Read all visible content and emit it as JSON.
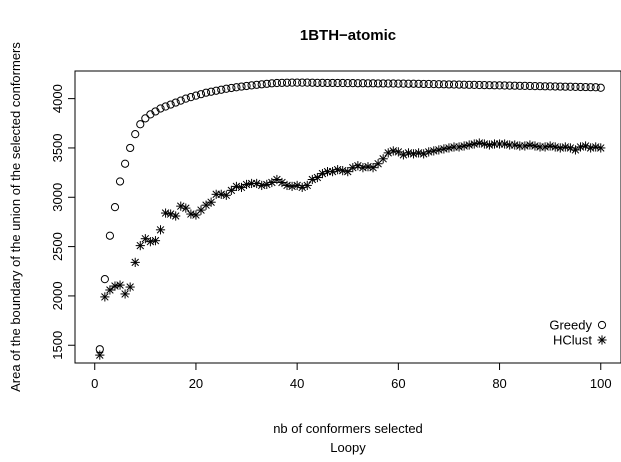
{
  "chart_data": {
    "type": "scatter",
    "title": "1BTH−atomic",
    "xlabel": "nb of conformers selected",
    "xlabel2": "Loopy",
    "ylabel": "Area of the boundary of the union of the selected conformers",
    "xlim": [
      -3.9,
      104
    ],
    "ylim": [
      1320,
      4280
    ],
    "xticks": [
      {
        "value": 0,
        "label": "0"
      },
      {
        "value": 20,
        "label": "20"
      },
      {
        "value": 40,
        "label": "40"
      },
      {
        "value": 60,
        "label": "60"
      },
      {
        "value": 80,
        "label": "80"
      },
      {
        "value": 100,
        "label": "100"
      }
    ],
    "yticks": [
      {
        "value": 1500,
        "label": "1500"
      },
      {
        "value": 2000,
        "label": "2000"
      },
      {
        "value": 2500,
        "label": "2500"
      },
      {
        "value": 3000,
        "label": "3000"
      },
      {
        "value": 3500,
        "label": "3500"
      },
      {
        "value": 4000,
        "label": "4000"
      }
    ],
    "grid": false,
    "legend_position": "bottom-right",
    "series": [
      {
        "name": "Greedy",
        "marker": "circle",
        "x": [
          1,
          2,
          3,
          4,
          5,
          6,
          7,
          8,
          9,
          10,
          11,
          12,
          13,
          14,
          15,
          16,
          17,
          18,
          19,
          20,
          21,
          22,
          23,
          24,
          25,
          26,
          27,
          28,
          29,
          30,
          31,
          32,
          33,
          34,
          35,
          36,
          37,
          38,
          39,
          40,
          41,
          42,
          43,
          44,
          45,
          46,
          47,
          48,
          49,
          50,
          51,
          52,
          53,
          54,
          55,
          56,
          57,
          58,
          59,
          60,
          61,
          62,
          63,
          64,
          65,
          66,
          67,
          68,
          69,
          70,
          71,
          72,
          73,
          74,
          75,
          76,
          77,
          78,
          79,
          80,
          81,
          82,
          83,
          84,
          85,
          86,
          87,
          88,
          89,
          90,
          91,
          92,
          93,
          94,
          95,
          96,
          97,
          98,
          99,
          100
        ],
        "y": [
          1460,
          2170,
          2610,
          2900,
          3160,
          3340,
          3500,
          3640,
          3740,
          3800,
          3840,
          3870,
          3900,
          3920,
          3940,
          3960,
          3980,
          4000,
          4015,
          4030,
          4045,
          4060,
          4070,
          4080,
          4090,
          4100,
          4108,
          4115,
          4122,
          4128,
          4134,
          4140,
          4145,
          4150,
          4155,
          4158,
          4160,
          4161,
          4162,
          4162,
          4162,
          4162,
          4161,
          4160,
          4160,
          4159,
          4159,
          4158,
          4158,
          4157,
          4157,
          4156,
          4156,
          4155,
          4155,
          4154,
          4154,
          4153,
          4153,
          4152,
          4152,
          4151,
          4151,
          4150,
          4149,
          4148,
          4147,
          4146,
          4145,
          4144,
          4143,
          4142,
          4141,
          4140,
          4139,
          4138,
          4137,
          4136,
          4135,
          4134,
          4133,
          4132,
          4131,
          4130,
          4129,
          4128,
          4127,
          4126,
          4125,
          4124,
          4123,
          4122,
          4121,
          4120,
          4119,
          4118,
          4117,
          4116,
          4115,
          4110
        ]
      },
      {
        "name": "HClust",
        "marker": "asterisk",
        "x": [
          1,
          2,
          3,
          4,
          5,
          6,
          7,
          8,
          9,
          10,
          11,
          12,
          13,
          14,
          15,
          16,
          17,
          18,
          19,
          20,
          21,
          22,
          23,
          24,
          25,
          26,
          27,
          28,
          29,
          30,
          31,
          32,
          33,
          34,
          35,
          36,
          37,
          38,
          39,
          40,
          41,
          42,
          43,
          44,
          45,
          46,
          47,
          48,
          49,
          50,
          51,
          52,
          53,
          54,
          55,
          56,
          57,
          58,
          59,
          60,
          61,
          62,
          63,
          64,
          65,
          66,
          67,
          68,
          69,
          70,
          71,
          72,
          73,
          74,
          75,
          76,
          77,
          78,
          79,
          80,
          81,
          82,
          83,
          84,
          85,
          86,
          87,
          88,
          89,
          90,
          91,
          92,
          93,
          94,
          95,
          96,
          97,
          98,
          99,
          100
        ],
        "y": [
          1400,
          1990,
          2060,
          2100,
          2110,
          2020,
          2090,
          2340,
          2510,
          2580,
          2550,
          2560,
          2670,
          2840,
          2830,
          2810,
          2910,
          2890,
          2830,
          2820,
          2870,
          2920,
          2950,
          3030,
          3030,
          3020,
          3070,
          3110,
          3100,
          3130,
          3140,
          3140,
          3120,
          3130,
          3150,
          3180,
          3150,
          3120,
          3110,
          3120,
          3100,
          3120,
          3180,
          3200,
          3240,
          3260,
          3260,
          3280,
          3270,
          3260,
          3300,
          3320,
          3300,
          3310,
          3300,
          3340,
          3390,
          3450,
          3470,
          3460,
          3430,
          3450,
          3440,
          3450,
          3440,
          3460,
          3470,
          3480,
          3490,
          3500,
          3510,
          3510,
          3520,
          3530,
          3540,
          3550,
          3540,
          3530,
          3540,
          3540,
          3540,
          3530,
          3530,
          3520,
          3520,
          3530,
          3520,
          3510,
          3510,
          3520,
          3510,
          3500,
          3510,
          3500,
          3480,
          3510,
          3520,
          3500,
          3510,
          3500
        ]
      }
    ]
  }
}
